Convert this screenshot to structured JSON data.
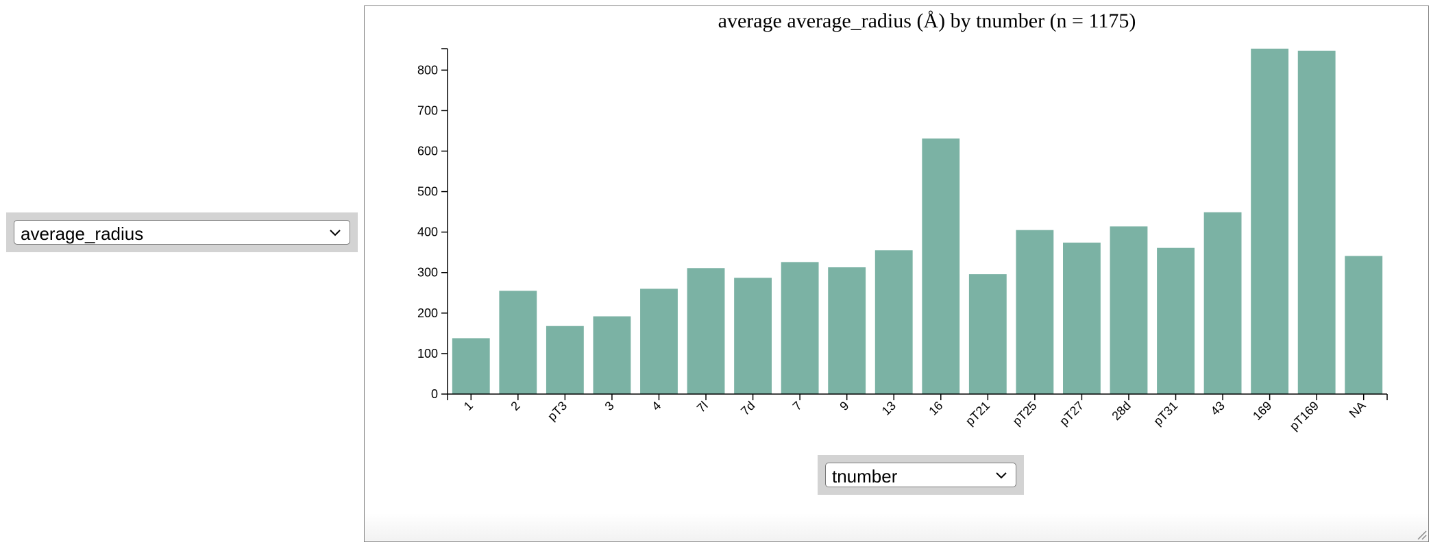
{
  "y_selector": {
    "value": "average_radius"
  },
  "x_selector": {
    "value": "tnumber"
  },
  "chart_data": {
    "type": "bar",
    "title": "average average_radius (Å) by tnumber (n = 1175)",
    "xlabel": "",
    "ylabel": "",
    "categories": [
      "1",
      "2",
      "pT3",
      "3",
      "4",
      "7l",
      "7d",
      "7",
      "9",
      "13",
      "16",
      "pT21",
      "pT25",
      "pT27",
      "28d",
      "pT31",
      "43",
      "169",
      "pT169",
      "NA"
    ],
    "values": [
      138,
      255,
      168,
      192,
      260,
      311,
      287,
      326,
      313,
      355,
      631,
      296,
      405,
      374,
      414,
      361,
      449,
      853,
      848,
      341
    ],
    "ylim": [
      0,
      853
    ],
    "yticks": [
      0,
      100,
      200,
      300,
      400,
      500,
      600,
      700,
      800
    ],
    "bar_color": "#7bb2a4",
    "grid": false,
    "legend": "none"
  }
}
